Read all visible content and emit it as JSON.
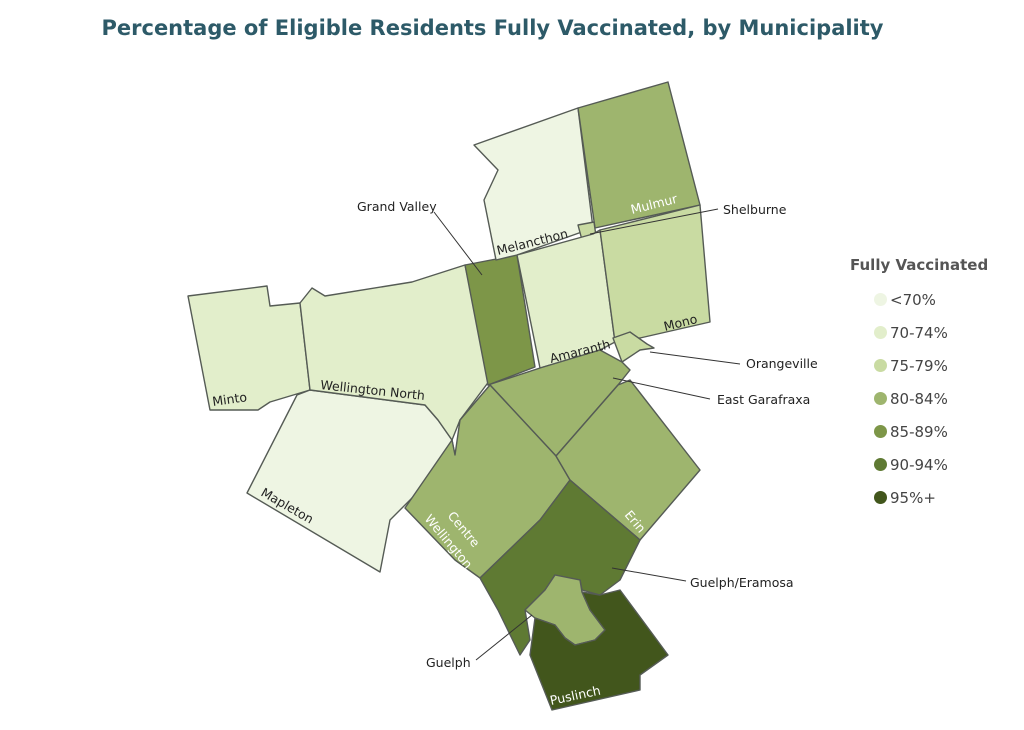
{
  "title": "Percentage of Eligible Residents Fully Vaccinated, by Municipality",
  "legend": {
    "title": "Fully Vaccinated",
    "items": [
      {
        "label": "<70%",
        "color": "#eef5e3"
      },
      {
        "label": "70-74%",
        "color": "#e2eecb"
      },
      {
        "label": "75-79%",
        "color": "#c9dba2"
      },
      {
        "label": "80-84%",
        "color": "#9eb56e"
      },
      {
        "label": "85-89%",
        "color": "#7d9648"
      },
      {
        "label": "90-94%",
        "color": "#5f7a33"
      },
      {
        "label": "95%+",
        "color": "#42561c"
      }
    ]
  },
  "regions": [
    {
      "id": "minto",
      "name": "Minto",
      "category": "70-74%"
    },
    {
      "id": "mapleton",
      "name": "Mapleton",
      "category": "<70%"
    },
    {
      "id": "wellington-north",
      "name": "Wellington North",
      "category": "70-74%"
    },
    {
      "id": "grand-valley",
      "name": "Grand Valley",
      "category": "85-89%"
    },
    {
      "id": "melancthon",
      "name": "Melancthon",
      "category": "<70%"
    },
    {
      "id": "mulmur",
      "name": "Mulmur",
      "category": "80-84%"
    },
    {
      "id": "shelburne",
      "name": "Shelburne",
      "category": "75-79%"
    },
    {
      "id": "amaranth",
      "name": "Amaranth",
      "category": "70-74%"
    },
    {
      "id": "mono",
      "name": "Mono",
      "category": "75-79%"
    },
    {
      "id": "orangeville",
      "name": "Orangeville",
      "category": "75-79%"
    },
    {
      "id": "east-garafraxa",
      "name": "East Garafraxa",
      "category": "80-84%"
    },
    {
      "id": "centre-wellington",
      "name": "Centre Wellington",
      "category": "80-84%"
    },
    {
      "id": "erin",
      "name": "Erin",
      "category": "80-84%"
    },
    {
      "id": "guelph-eramosa",
      "name": "Guelph/Eramosa",
      "category": "90-94%"
    },
    {
      "id": "guelph",
      "name": "Guelph",
      "category": "80-84%"
    },
    {
      "id": "puslinch",
      "name": "Puslinch",
      "category": "95%+"
    }
  ]
}
